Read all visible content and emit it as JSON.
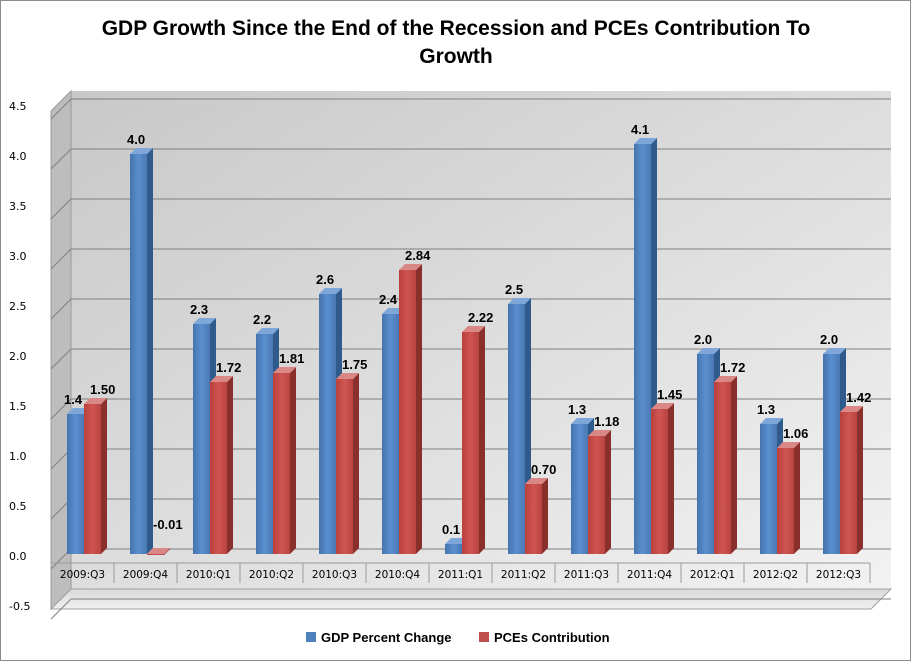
{
  "chart_data": {
    "type": "bar",
    "title_lines": [
      "GDP Growth Since the End of the Recession and PCEs Contribution To",
      "Growth"
    ],
    "categories": [
      "2009:Q3",
      "2009:Q4",
      "2010:Q1",
      "2010:Q2",
      "2010:Q3",
      "2010:Q4",
      "2011:Q1",
      "2011:Q2",
      "2011:Q3",
      "2011:Q4",
      "2012:Q1",
      "2012:Q2",
      "2012:Q3"
    ],
    "series": [
      {
        "name": "GDP Percent Change",
        "color": "#4f81bd",
        "values": [
          1.4,
          4.0,
          2.3,
          2.2,
          2.6,
          2.4,
          0.1,
          2.5,
          1.3,
          4.1,
          2.0,
          1.3,
          2.0
        ],
        "labels": [
          "1.4",
          "4.0",
          "2.3",
          "2.2",
          "2.6",
          "2.4",
          "0.1",
          "2.5",
          "1.3",
          "4.1",
          "2.0",
          "1.3",
          "2.0"
        ]
      },
      {
        "name": "PCEs Contribution",
        "color": "#c0504d",
        "values": [
          1.5,
          -0.01,
          1.72,
          1.81,
          1.75,
          2.84,
          2.22,
          0.7,
          1.18,
          1.45,
          1.72,
          1.06,
          1.42
        ],
        "labels": [
          "1.50",
          "-0.01",
          "1.72",
          "1.81",
          "1.75",
          "2.84",
          "2.22",
          "0.70",
          "1.18",
          "1.45",
          "1.72",
          "1.06",
          "1.42"
        ]
      }
    ],
    "yticks": [
      "4.5",
      "4.0",
      "3.5",
      "3.0",
      "2.5",
      "2.0",
      "1.5",
      "1.0",
      "0.5",
      "0.0",
      "-0.5"
    ],
    "ylim": [
      -0.5,
      4.5
    ],
    "grid": true,
    "legend_position": "bottom"
  }
}
